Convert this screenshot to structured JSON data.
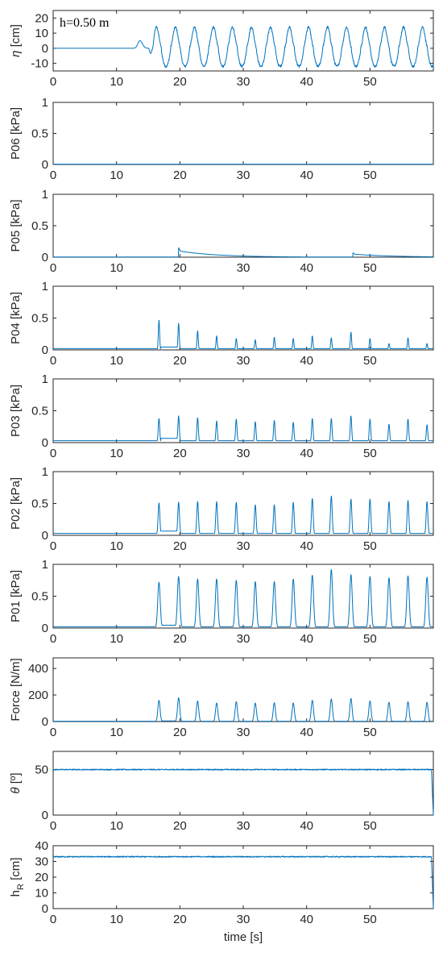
{
  "colors": {
    "series": "#0072bd",
    "axis": "#262626",
    "background": "#ffffff"
  },
  "chart_data": [
    {
      "id": "eta",
      "type": "line",
      "ylabel": "η [cm]",
      "ylabel_italic_symbol": "η",
      "ylabel_rest": " [cm]",
      "annotation": "h=0.50 m",
      "xlim": [
        0,
        60
      ],
      "ylim": [
        -15,
        25
      ],
      "yticks": [
        -10,
        0,
        10,
        20
      ],
      "xticks": [
        0,
        10,
        20,
        30,
        40,
        50
      ],
      "signal": {
        "kind": "wave",
        "onset": 12.5,
        "precursor_peak_t": 13.7,
        "precursor_amp": 5,
        "first_full_t": 16.3,
        "period": 3.0,
        "crest": 14,
        "trough": -12
      }
    },
    {
      "id": "p06",
      "type": "line",
      "ylabel": "P06  [kPa]",
      "xlim": [
        0,
        60
      ],
      "ylim": [
        0,
        1
      ],
      "yticks": [
        0,
        0.5,
        1
      ],
      "xticks": [
        0,
        10,
        20,
        30,
        40,
        50
      ],
      "signal": {
        "kind": "flat",
        "level": 0.005
      }
    },
    {
      "id": "p05",
      "type": "line",
      "ylabel": "P05  [kPa]",
      "xlim": [
        0,
        60
      ],
      "ylim": [
        0,
        1
      ],
      "yticks": [
        0,
        0.5,
        1
      ],
      "xticks": [
        0,
        10,
        20,
        30,
        40,
        50
      ],
      "signal": {
        "kind": "impulses",
        "events": [
          [
            19.8,
            0.15,
            0.1,
            0.02
          ],
          [
            47.3,
            0.07,
            0.05,
            0.02
          ]
        ]
      }
    },
    {
      "id": "p04",
      "type": "line",
      "ylabel": "P04  [kPa]",
      "xlim": [
        0,
        60
      ],
      "ylim": [
        0,
        1
      ],
      "yticks": [
        0,
        0.5,
        1
      ],
      "xticks": [
        0,
        10,
        20,
        30,
        40,
        50
      ],
      "signal": {
        "kind": "peaks",
        "width": 0.25,
        "base": 0.02,
        "peaks": [
          [
            16.7,
            0.47
          ],
          [
            19.8,
            0.42
          ],
          [
            22.8,
            0.3
          ],
          [
            25.8,
            0.22
          ],
          [
            28.9,
            0.18
          ],
          [
            31.9,
            0.16
          ],
          [
            34.9,
            0.2
          ],
          [
            37.9,
            0.18
          ],
          [
            40.9,
            0.22
          ],
          [
            43.9,
            0.19
          ],
          [
            47.0,
            0.28
          ],
          [
            50.0,
            0.18
          ],
          [
            53.0,
            0.1
          ],
          [
            56.0,
            0.19
          ],
          [
            59.0,
            0.1
          ]
        ]
      }
    },
    {
      "id": "p03",
      "type": "line",
      "ylabel": "P03  [kPa]",
      "xlim": [
        0,
        60
      ],
      "ylim": [
        0,
        1
      ],
      "yticks": [
        0,
        0.5,
        1
      ],
      "xticks": [
        0,
        10,
        20,
        30,
        40,
        50
      ],
      "signal": {
        "kind": "peaks",
        "width": 0.3,
        "base": 0.03,
        "peaks": [
          [
            16.7,
            0.38
          ],
          [
            19.8,
            0.42
          ],
          [
            22.8,
            0.39
          ],
          [
            25.8,
            0.34
          ],
          [
            28.9,
            0.37
          ],
          [
            31.9,
            0.33
          ],
          [
            34.9,
            0.35
          ],
          [
            37.9,
            0.32
          ],
          [
            40.9,
            0.38
          ],
          [
            43.9,
            0.38
          ],
          [
            47.0,
            0.42
          ],
          [
            50.0,
            0.37
          ],
          [
            53.0,
            0.29
          ],
          [
            56.0,
            0.37
          ],
          [
            59.0,
            0.28
          ]
        ]
      }
    },
    {
      "id": "p02",
      "type": "line",
      "ylabel": "P02  [kPa]",
      "xlim": [
        0,
        60
      ],
      "ylim": [
        0,
        1
      ],
      "yticks": [
        0,
        0.5,
        1
      ],
      "xticks": [
        0,
        10,
        20,
        30,
        40,
        50
      ],
      "signal": {
        "kind": "peaks",
        "width": 0.35,
        "base": 0.03,
        "peaks": [
          [
            16.7,
            0.51
          ],
          [
            19.8,
            0.52
          ],
          [
            22.8,
            0.53
          ],
          [
            25.8,
            0.53
          ],
          [
            28.9,
            0.52
          ],
          [
            31.9,
            0.48
          ],
          [
            34.9,
            0.48
          ],
          [
            37.9,
            0.52
          ],
          [
            40.9,
            0.58
          ],
          [
            43.9,
            0.62
          ],
          [
            47.0,
            0.57
          ],
          [
            50.0,
            0.57
          ],
          [
            53.0,
            0.53
          ],
          [
            56.0,
            0.55
          ],
          [
            59.0,
            0.53
          ]
        ]
      }
    },
    {
      "id": "p01",
      "type": "line",
      "ylabel": "P01  [kPa]",
      "xlim": [
        0,
        60
      ],
      "ylim": [
        0,
        1
      ],
      "yticks": [
        0,
        0.5,
        1
      ],
      "xticks": [
        0,
        10,
        20,
        30,
        40,
        50
      ],
      "signal": {
        "kind": "peaks",
        "width": 0.5,
        "base": 0.02,
        "peaks": [
          [
            16.7,
            0.72
          ],
          [
            19.8,
            0.81
          ],
          [
            22.8,
            0.77
          ],
          [
            25.8,
            0.77
          ],
          [
            28.9,
            0.75
          ],
          [
            31.9,
            0.73
          ],
          [
            34.9,
            0.73
          ],
          [
            37.9,
            0.77
          ],
          [
            40.9,
            0.83
          ],
          [
            43.9,
            0.92
          ],
          [
            47.0,
            0.84
          ],
          [
            50.0,
            0.81
          ],
          [
            53.0,
            0.79
          ],
          [
            56.0,
            0.82
          ],
          [
            59.0,
            0.8
          ]
        ]
      }
    },
    {
      "id": "force",
      "type": "line",
      "ylabel": "Force [N/m]",
      "xlim": [
        0,
        60
      ],
      "ylim": [
        0,
        480
      ],
      "yticks": [
        0,
        200,
        400
      ],
      "xticks": [
        0,
        10,
        20,
        30,
        40,
        50
      ],
      "signal": {
        "kind": "peaks",
        "width": 0.45,
        "base": 2,
        "peaks": [
          [
            16.7,
            160
          ],
          [
            19.8,
            180
          ],
          [
            22.8,
            155
          ],
          [
            25.8,
            140
          ],
          [
            28.9,
            150
          ],
          [
            31.9,
            140
          ],
          [
            34.9,
            142
          ],
          [
            37.9,
            140
          ],
          [
            40.9,
            160
          ],
          [
            43.9,
            170
          ],
          [
            47.0,
            175
          ],
          [
            50.0,
            155
          ],
          [
            53.0,
            145
          ],
          [
            56.0,
            150
          ],
          [
            59.0,
            145
          ]
        ]
      }
    },
    {
      "id": "theta",
      "type": "line",
      "ylabel": "θ [º]",
      "ylabel_italic_symbol": "θ",
      "ylabel_rest": " [º]",
      "xlim": [
        0,
        60
      ],
      "ylim": [
        0,
        70
      ],
      "yticks": [
        0,
        50
      ],
      "xticks": [
        0,
        10,
        20,
        30,
        40,
        50
      ],
      "signal": {
        "kind": "constant",
        "level": 50,
        "noise": 0.6,
        "drop_at": 59.7
      }
    },
    {
      "id": "hr",
      "type": "line",
      "ylabel": "hR [cm]",
      "ylabel_main": "h",
      "ylabel_sub": "R",
      "ylabel_rest": " [cm]",
      "xlim": [
        0,
        60
      ],
      "ylim": [
        0,
        40
      ],
      "yticks": [
        0,
        10,
        20,
        30,
        40
      ],
      "xticks": [
        0,
        10,
        20,
        30,
        40,
        50
      ],
      "xlabel": "time [s]",
      "signal": {
        "kind": "constant",
        "level": 33,
        "noise": 0.35,
        "drop_at": 59.7
      }
    }
  ]
}
